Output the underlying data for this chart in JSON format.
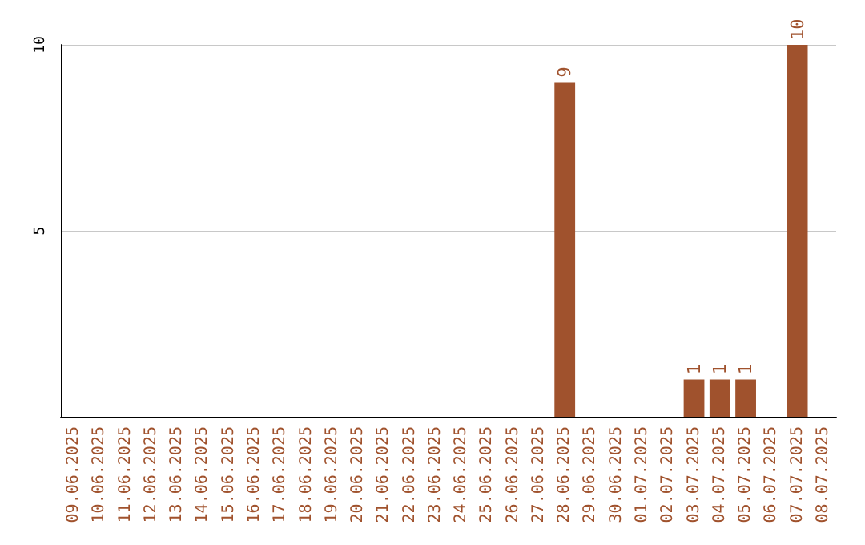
{
  "chart_data": {
    "type": "bar",
    "categories": [
      "09.06.2025",
      "10.06.2025",
      "11.06.2025",
      "12.06.2025",
      "13.06.2025",
      "14.06.2025",
      "15.06.2025",
      "16.06.2025",
      "17.06.2025",
      "18.06.2025",
      "19.06.2025",
      "20.06.2025",
      "21.06.2025",
      "22.06.2025",
      "23.06.2025",
      "24.06.2025",
      "25.06.2025",
      "26.06.2025",
      "27.06.2025",
      "28.06.2025",
      "29.06.2025",
      "30.06.2025",
      "01.07.2025",
      "02.07.2025",
      "03.07.2025",
      "04.07.2025",
      "05.07.2025",
      "06.07.2025",
      "07.07.2025",
      "08.07.2025"
    ],
    "values": [
      0,
      0,
      0,
      0,
      0,
      0,
      0,
      0,
      0,
      0,
      0,
      0,
      0,
      0,
      0,
      0,
      0,
      0,
      0,
      9,
      0,
      0,
      0,
      0,
      1,
      1,
      1,
      0,
      10,
      0
    ],
    "value_labels": [
      null,
      null,
      null,
      null,
      null,
      null,
      null,
      null,
      null,
      null,
      null,
      null,
      null,
      null,
      null,
      null,
      null,
      null,
      null,
      "9",
      null,
      null,
      null,
      null,
      "1",
      "1",
      "1",
      null,
      "10",
      null
    ],
    "color": "#a0522d",
    "ylim": [
      0,
      10
    ],
    "yticks": [
      5,
      10
    ],
    "grid": "y"
  }
}
